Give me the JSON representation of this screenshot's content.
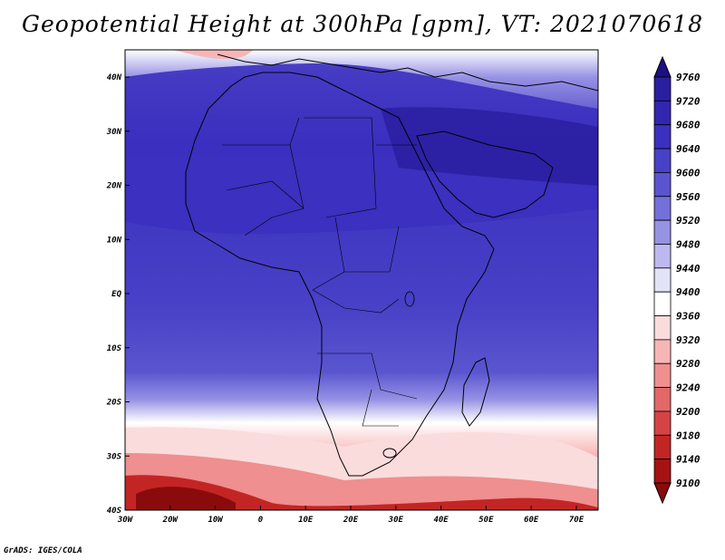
{
  "title": "Geopotential Height at 300hPa [gpm], VT: 2021070618",
  "credit": "GrADS: IGES/COLA",
  "lat_labels": [
    "40N",
    "30N",
    "20N",
    "10N",
    "EQ",
    "10S",
    "20S",
    "30S",
    "40S"
  ],
  "lon_labels": [
    "30W",
    "20W",
    "10W",
    "0",
    "10E",
    "20E",
    "30E",
    "40E",
    "50E",
    "60E",
    "70E"
  ],
  "colorbar": {
    "labels": [
      "9760",
      "9720",
      "9680",
      "9640",
      "9600",
      "9560",
      "9520",
      "9480",
      "9440",
      "9400",
      "9360",
      "9320",
      "9280",
      "9240",
      "9200",
      "9180",
      "9140",
      "9100"
    ],
    "colors": [
      "#1c1084",
      "#2a1fa0",
      "#3226b0",
      "#3b30bf",
      "#4840c6",
      "#5a55cf",
      "#7470da",
      "#9692e4",
      "#bbb9ef",
      "#e3e3f8",
      "#ffffff",
      "#fbdcdc",
      "#f7b6b6",
      "#ef8f8f",
      "#e36868",
      "#d54444",
      "#c32525",
      "#a51212",
      "#8a0b0b"
    ]
  },
  "map_data": {
    "variable": "Geopotential Height",
    "level_hpa": 300,
    "units": "gpm",
    "valid_time": "2021070618",
    "lon_range": [
      -30,
      75
    ],
    "lat_range": [
      -40,
      45
    ]
  }
}
